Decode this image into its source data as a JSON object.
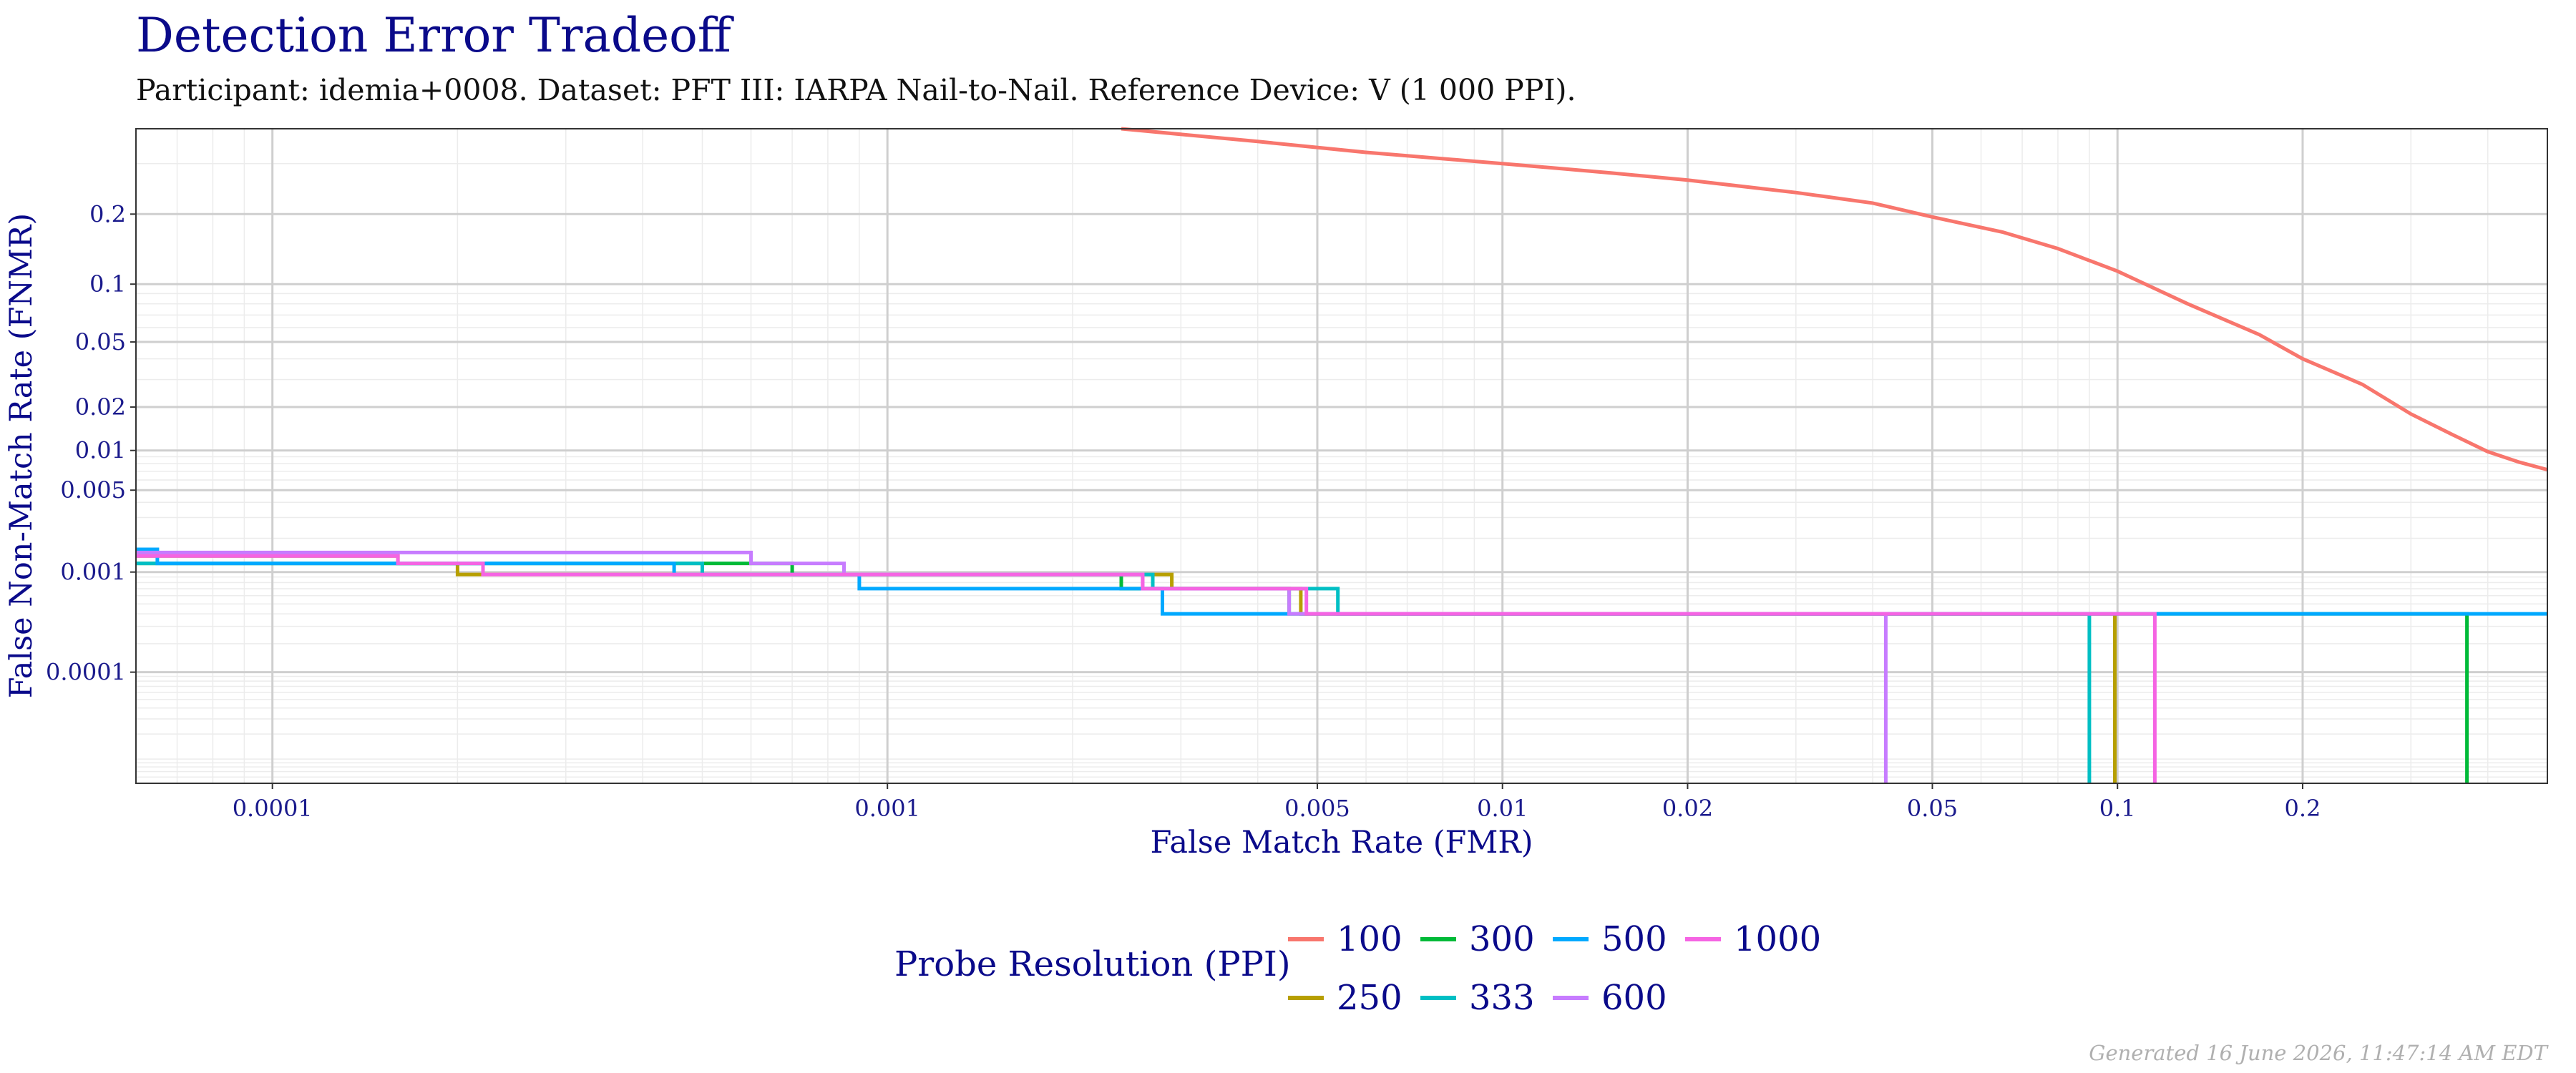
{
  "chart_data": {
    "type": "line",
    "title": "Detection Error Tradeoff",
    "subtitle": "Participant: idemia+0008. Dataset: PFT III: IARPA Nail-to-Nail. Reference Device: V (1 000 PPI).",
    "xlabel": "False Match Rate (FMR)",
    "ylabel": "False Non-Match Rate (FNMR)",
    "x_scale": "log",
    "y_scale": "probit",
    "xlim": [
      6e-05,
      0.5
    ],
    "ylim": [
      5e-06,
      0.38
    ],
    "x_ticks": [
      {
        "value": 0.0001,
        "label": "0.0001"
      },
      {
        "value": 0.001,
        "label": "0.001"
      },
      {
        "value": 0.005,
        "label": "0.005"
      },
      {
        "value": 0.01,
        "label": "0.01"
      },
      {
        "value": 0.02,
        "label": "0.02"
      },
      {
        "value": 0.05,
        "label": "0.05"
      },
      {
        "value": 0.1,
        "label": "0.1"
      },
      {
        "value": 0.2,
        "label": "0.2"
      }
    ],
    "y_ticks": [
      {
        "value": 0.2,
        "label": "0.2"
      },
      {
        "value": 0.1,
        "label": "0.1"
      },
      {
        "value": 0.05,
        "label": "0.05"
      },
      {
        "value": 0.02,
        "label": "0.02"
      },
      {
        "value": 0.01,
        "label": "0.01"
      },
      {
        "value": 0.005,
        "label": "0.005"
      },
      {
        "value": 0.001,
        "label": "0.001"
      },
      {
        "value": 0.0001,
        "label": "0.0001"
      }
    ],
    "grid": true,
    "legend": {
      "title": "Probe Resolution (PPI)",
      "position": "bottom",
      "rows": [
        [
          "100",
          "300",
          "500",
          "1000"
        ],
        [
          "250",
          "333",
          "600"
        ]
      ]
    },
    "series": [
      {
        "name": "100",
        "color": "#F8766D",
        "step": false,
        "points": [
          [
            0.0024,
            0.38
          ],
          [
            0.004,
            0.35
          ],
          [
            0.006,
            0.325
          ],
          [
            0.01,
            0.3
          ],
          [
            0.015,
            0.28
          ],
          [
            0.02,
            0.265
          ],
          [
            0.03,
            0.24
          ],
          [
            0.04,
            0.22
          ],
          [
            0.05,
            0.195
          ],
          [
            0.065,
            0.17
          ],
          [
            0.08,
            0.145
          ],
          [
            0.1,
            0.115
          ],
          [
            0.13,
            0.08
          ],
          [
            0.17,
            0.055
          ],
          [
            0.2,
            0.04
          ],
          [
            0.25,
            0.028
          ],
          [
            0.3,
            0.018
          ],
          [
            0.35,
            0.013
          ],
          [
            0.4,
            0.0098
          ],
          [
            0.45,
            0.0082
          ],
          [
            0.5,
            0.0072
          ]
        ]
      },
      {
        "name": "250",
        "color": "#B79F00",
        "step": true,
        "points": [
          [
            6e-05,
            0.0014
          ],
          [
            0.00016,
            0.0014
          ],
          [
            0.00016,
            0.0012
          ],
          [
            0.0002,
            0.0012
          ],
          [
            0.0002,
            0.00095
          ],
          [
            0.0029,
            0.00095
          ],
          [
            0.0029,
            0.0007
          ],
          [
            0.0047,
            0.0007
          ],
          [
            0.0047,
            0.0004
          ],
          [
            0.099,
            0.0004
          ],
          [
            0.099,
            5e-06
          ]
        ]
      },
      {
        "name": "300",
        "color": "#00BA38",
        "step": true,
        "points": [
          [
            6e-05,
            0.0012
          ],
          [
            0.0007,
            0.0012
          ],
          [
            0.0007,
            0.00095
          ],
          [
            0.0024,
            0.00095
          ],
          [
            0.0024,
            0.0007
          ],
          [
            0.0045,
            0.0007
          ],
          [
            0.0045,
            0.0004
          ],
          [
            0.37,
            0.0004
          ],
          [
            0.37,
            5e-06
          ]
        ]
      },
      {
        "name": "333",
        "color": "#00BFC4",
        "step": true,
        "points": [
          [
            6e-05,
            0.0012
          ],
          [
            0.0005,
            0.0012
          ],
          [
            0.0005,
            0.00095
          ],
          [
            0.0027,
            0.00095
          ],
          [
            0.0027,
            0.0007
          ],
          [
            0.0054,
            0.0007
          ],
          [
            0.0054,
            0.0004
          ],
          [
            0.09,
            0.0004
          ],
          [
            0.09,
            5e-06
          ]
        ]
      },
      {
        "name": "500",
        "color": "#00A9FF",
        "step": true,
        "points": [
          [
            6e-05,
            0.0016
          ],
          [
            6.5e-05,
            0.0016
          ],
          [
            6.5e-05,
            0.0012
          ],
          [
            0.00045,
            0.0012
          ],
          [
            0.00045,
            0.00095
          ],
          [
            0.0009,
            0.00095
          ],
          [
            0.0009,
            0.0007
          ],
          [
            0.0028,
            0.0007
          ],
          [
            0.0028,
            0.0004
          ],
          [
            0.5,
            0.0004
          ]
        ]
      },
      {
        "name": "600",
        "color": "#C77CFF",
        "step": true,
        "points": [
          [
            6e-05,
            0.0015
          ],
          [
            0.0006,
            0.0015
          ],
          [
            0.0006,
            0.0012
          ],
          [
            0.00085,
            0.0012
          ],
          [
            0.00085,
            0.00095
          ],
          [
            0.0026,
            0.00095
          ],
          [
            0.0026,
            0.0007
          ],
          [
            0.0045,
            0.0007
          ],
          [
            0.0045,
            0.0004
          ],
          [
            0.042,
            0.0004
          ],
          [
            0.042,
            5e-06
          ]
        ]
      },
      {
        "name": "1000",
        "color": "#F564E3",
        "step": true,
        "points": [
          [
            6e-05,
            0.0014
          ],
          [
            0.00016,
            0.0014
          ],
          [
            0.00016,
            0.0012
          ],
          [
            0.00022,
            0.0012
          ],
          [
            0.00022,
            0.00095
          ],
          [
            0.0026,
            0.00095
          ],
          [
            0.0026,
            0.0007
          ],
          [
            0.0048,
            0.0007
          ],
          [
            0.0048,
            0.0004
          ],
          [
            0.115,
            0.0004
          ],
          [
            0.115,
            5e-06
          ]
        ]
      }
    ]
  },
  "footer": "Generated 16 June 2026, 11:47:14 AM EDT"
}
